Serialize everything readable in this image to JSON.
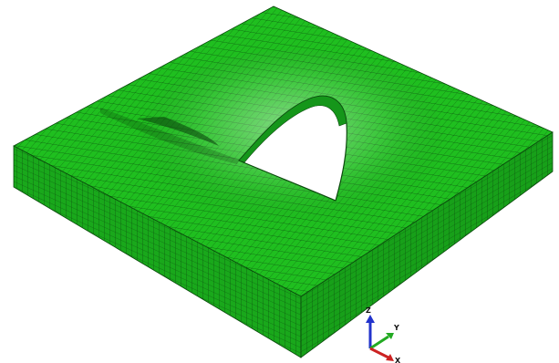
{
  "model": {
    "mesh_color": "#1fbf1f",
    "mesh_color_shaded": "#15961a",
    "mesh_color_dark": "#0f6e12",
    "mesh_line_color": "#0b4a0d",
    "highlight_color": "#b8e6b0",
    "hole_interior_color": "#ffffff"
  },
  "triad": {
    "z_label": "Z",
    "y_label": "Y",
    "x_label": "X",
    "z_color": "#2233cc",
    "y_color": "#22aa22",
    "x_color": "#cc2222"
  }
}
